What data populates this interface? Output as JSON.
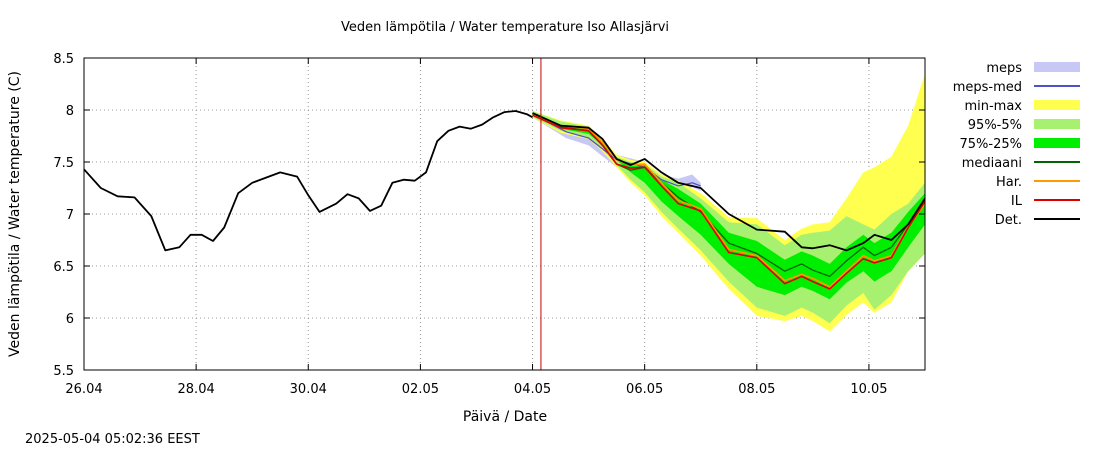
{
  "chart_data": {
    "type": "line",
    "title": "Veden lämpötila / Water temperature Iso Allasjärvi",
    "xlabel": "Päivä / Date",
    "ylabel": "Veden lämpötila / Water temperature (C)",
    "footer": "2025-05-04  05:02:36 EEST",
    "xlim": [
      0,
      15
    ],
    "ylim": [
      5.5,
      8.5
    ],
    "x_unit": "days since 26.04",
    "grid": true,
    "now_line_x": 8.15,
    "x_ticks": [
      {
        "x": 0,
        "label": "26.04"
      },
      {
        "x": 2,
        "label": "28.04"
      },
      {
        "x": 4,
        "label": "30.04"
      },
      {
        "x": 6,
        "label": "02.05"
      },
      {
        "x": 8,
        "label": "04.05"
      },
      {
        "x": 10,
        "label": "06.05"
      },
      {
        "x": 12,
        "label": "08.05"
      },
      {
        "x": 14,
        "label": "10.05"
      }
    ],
    "y_ticks": [
      {
        "y": 5.5,
        "label": "5.5"
      },
      {
        "y": 6,
        "label": "6"
      },
      {
        "y": 6.5,
        "label": "6.5"
      },
      {
        "y": 7,
        "label": "7"
      },
      {
        "y": 7.5,
        "label": "7.5"
      },
      {
        "y": 8,
        "label": "8"
      },
      {
        "y": 8.5,
        "label": "8.5"
      }
    ],
    "legend_position": "right",
    "legend": [
      {
        "label": "meps",
        "kind": "band",
        "color": "#c8c8f5"
      },
      {
        "label": "meps-med",
        "kind": "line",
        "color": "#5050c8"
      },
      {
        "label": "min-max",
        "kind": "band",
        "color": "#ffff50"
      },
      {
        "label": "95%-5%",
        "kind": "band",
        "color": "#a8f070"
      },
      {
        "label": "75%-25%",
        "kind": "band",
        "color": "#00ee00"
      },
      {
        "label": "mediaani",
        "kind": "line",
        "color": "#006400"
      },
      {
        "label": "Har.",
        "kind": "line",
        "color": "#ff9900"
      },
      {
        "label": "IL",
        "kind": "line",
        "color": "#dd0000"
      },
      {
        "label": "Det.",
        "kind": "line",
        "color": "#000000"
      }
    ],
    "observed": {
      "name": "Det.",
      "x": [
        0,
        0.3,
        0.6,
        0.9,
        1.2,
        1.45,
        1.7,
        1.9,
        2.1,
        2.3,
        2.5,
        2.75,
        3.0,
        3.2,
        3.5,
        3.8,
        4.0,
        4.2,
        4.5,
        4.7,
        4.9,
        5.1,
        5.3,
        5.5,
        5.7,
        5.9,
        6.1,
        6.3,
        6.5,
        6.7,
        6.9,
        7.1,
        7.3,
        7.5,
        7.7,
        7.9,
        8.0
      ],
      "y": [
        7.43,
        7.25,
        7.17,
        7.16,
        6.98,
        6.65,
        6.68,
        6.8,
        6.8,
        6.74,
        6.87,
        7.2,
        7.3,
        7.34,
        7.4,
        7.36,
        7.18,
        7.02,
        7.1,
        7.19,
        7.15,
        7.03,
        7.08,
        7.3,
        7.33,
        7.32,
        7.4,
        7.7,
        7.8,
        7.84,
        7.82,
        7.86,
        7.93,
        7.98,
        7.99,
        7.96,
        7.93
      ]
    },
    "forecast_x": [
      8.0,
      8.5,
      9.0,
      9.25,
      9.5,
      9.75,
      10.0,
      10.3,
      10.6,
      11.0,
      11.5,
      12.0,
      12.5,
      12.8,
      13.0,
      13.3,
      13.6,
      13.9,
      14.1,
      14.4,
      14.7,
      15.0
    ],
    "bands": [
      {
        "name": "min-max",
        "color": "#ffff50",
        "lower": [
          7.93,
          7.78,
          7.72,
          7.6,
          7.45,
          7.3,
          7.18,
          6.98,
          6.82,
          6.6,
          6.28,
          6.02,
          5.97,
          6.02,
          5.97,
          5.87,
          6.03,
          6.15,
          6.05,
          6.15,
          6.45,
          6.62
        ],
        "upper": [
          7.99,
          7.9,
          7.85,
          7.72,
          7.57,
          7.52,
          7.5,
          7.38,
          7.32,
          7.2,
          6.97,
          6.96,
          6.75,
          6.86,
          6.9,
          6.92,
          7.15,
          7.4,
          7.45,
          7.55,
          7.85,
          8.35
        ]
      },
      {
        "name": "95%-5%",
        "color": "#a8f070",
        "lower": [
          7.93,
          7.8,
          7.73,
          7.62,
          7.47,
          7.33,
          7.21,
          7.02,
          6.86,
          6.65,
          6.35,
          6.1,
          6.02,
          6.1,
          6.05,
          5.95,
          6.12,
          6.24,
          6.08,
          6.22,
          6.45,
          6.62
        ],
        "upper": [
          7.99,
          7.89,
          7.84,
          7.7,
          7.55,
          7.5,
          7.48,
          7.36,
          7.3,
          7.15,
          6.92,
          6.9,
          6.7,
          6.8,
          6.82,
          6.84,
          6.98,
          6.9,
          6.85,
          7.0,
          7.1,
          7.3
        ]
      },
      {
        "name": "75%-25%",
        "color": "#00ee00",
        "lower": [
          7.95,
          7.82,
          7.77,
          7.66,
          7.52,
          7.4,
          7.3,
          7.12,
          6.98,
          6.8,
          6.52,
          6.3,
          6.22,
          6.3,
          6.26,
          6.18,
          6.34,
          6.45,
          6.35,
          6.45,
          6.68,
          6.9
        ],
        "upper": [
          7.98,
          7.86,
          7.82,
          7.7,
          7.53,
          7.46,
          7.47,
          7.33,
          7.24,
          7.1,
          6.82,
          6.74,
          6.56,
          6.64,
          6.6,
          6.52,
          6.68,
          6.8,
          6.72,
          6.82,
          7.02,
          7.2
        ]
      }
    ],
    "forecast_lines": [
      {
        "name": "mediaani",
        "color": "#006400",
        "width": 1.3,
        "y": [
          7.96,
          7.84,
          7.8,
          7.66,
          7.48,
          7.42,
          7.45,
          7.3,
          7.16,
          7.02,
          6.72,
          6.62,
          6.45,
          6.52,
          6.46,
          6.4,
          6.55,
          6.68,
          6.6,
          6.68,
          6.9,
          7.12
        ]
      },
      {
        "name": "Har.",
        "color": "#ff9900",
        "width": 1.6,
        "y": [
          7.96,
          7.85,
          7.82,
          7.69,
          7.52,
          7.47,
          7.48,
          7.3,
          7.13,
          7.05,
          6.66,
          6.6,
          6.36,
          6.42,
          6.38,
          6.3,
          6.45,
          6.6,
          6.55,
          6.6,
          6.88,
          7.1
        ]
      },
      {
        "name": "IL",
        "color": "#dd0000",
        "width": 1.6,
        "y": [
          7.95,
          7.83,
          7.8,
          7.66,
          7.48,
          7.44,
          7.45,
          7.27,
          7.1,
          7.03,
          6.63,
          6.58,
          6.33,
          6.4,
          6.35,
          6.28,
          6.43,
          6.57,
          6.53,
          6.58,
          6.87,
          7.12
        ]
      },
      {
        "name": "Det.",
        "color": "#000000",
        "width": 1.8,
        "y": [
          7.97,
          7.85,
          7.83,
          7.72,
          7.53,
          7.47,
          7.53,
          7.4,
          7.3,
          7.25,
          7.0,
          6.85,
          6.83,
          6.68,
          6.67,
          6.7,
          6.65,
          6.72,
          6.8,
          6.75,
          6.9,
          7.15
        ]
      }
    ],
    "meps": {
      "name": "meps",
      "color": "#c8c8f5",
      "x": [
        8.0,
        8.6,
        9.0,
        9.5,
        10.0,
        10.3,
        10.6,
        10.85,
        11.0
      ],
      "lower": [
        7.93,
        7.73,
        7.66,
        7.45,
        7.4,
        7.29,
        7.2,
        7.26,
        7.22
      ],
      "upper": [
        7.99,
        7.84,
        7.8,
        7.57,
        7.5,
        7.38,
        7.34,
        7.38,
        7.3
      ]
    },
    "meps_med": {
      "name": "meps-med",
      "color": "#5050c8",
      "x": [
        8.0,
        8.6,
        9.0,
        9.5,
        10.0,
        10.3,
        10.6,
        10.85,
        11.0
      ],
      "y": [
        7.96,
        7.79,
        7.73,
        7.52,
        7.45,
        7.33,
        7.27,
        7.3,
        7.27
      ]
    }
  }
}
